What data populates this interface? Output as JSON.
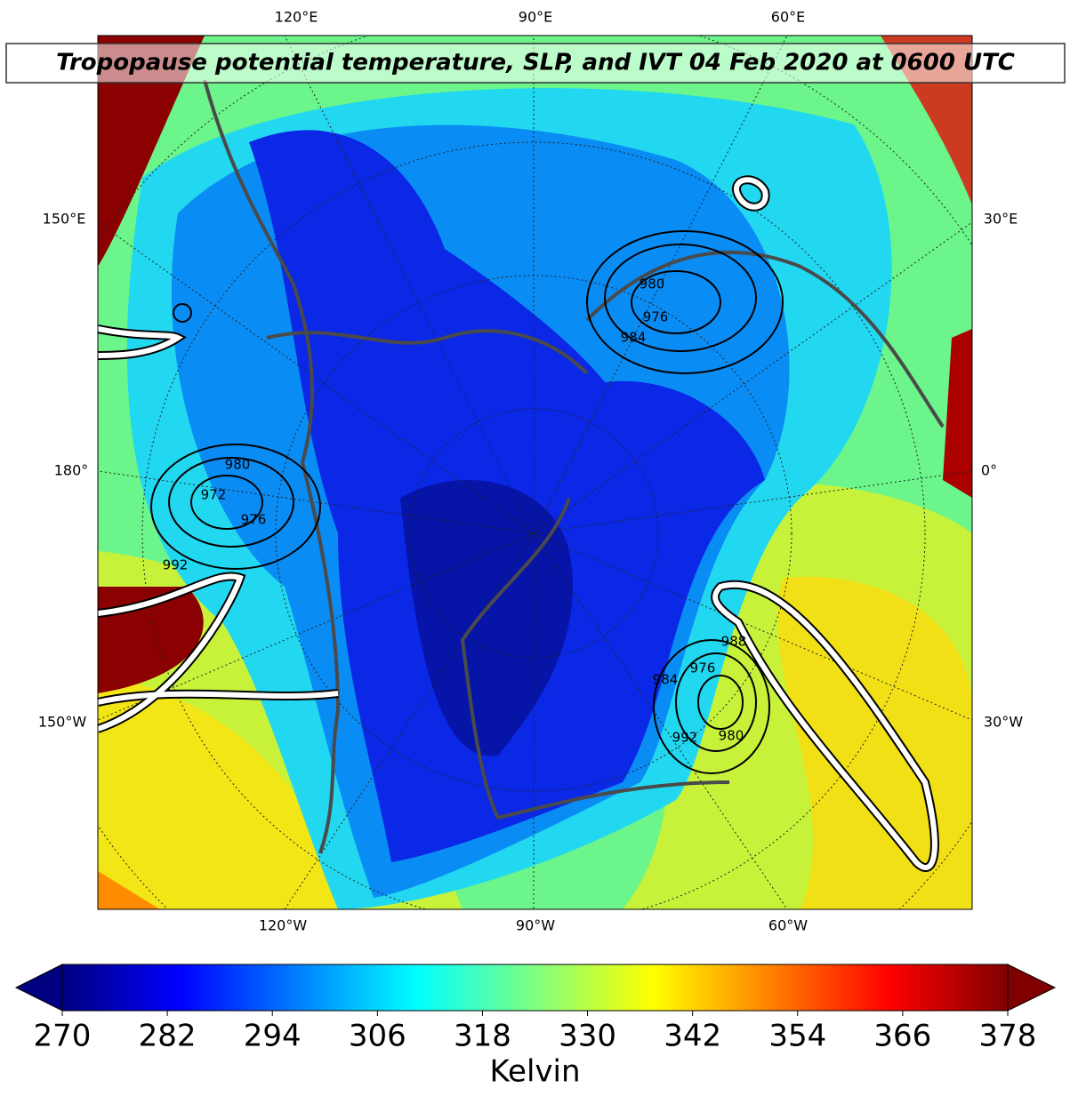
{
  "title": "Tropopause potential temperature, SLP, and IVT 04 Feb 2020 at 0600 UTC",
  "longitude_labels": {
    "top": [
      "120°E",
      "90°E",
      "60°E"
    ],
    "left": [
      "150°E",
      "180°",
      "150°W"
    ],
    "right": [
      "30°E",
      "0°",
      "30°W"
    ],
    "bottom": [
      "120°W",
      "90°W",
      "60°W"
    ]
  },
  "slp_contour_labels": [
    980,
    976,
    984,
    980,
    972,
    976,
    992,
    988,
    976,
    984,
    980,
    992
  ],
  "colorbar": {
    "colormap": "jet",
    "extend": "both",
    "lim": [
      270,
      378
    ],
    "ticks": [
      270,
      282,
      294,
      306,
      318,
      330,
      342,
      354,
      366,
      378
    ],
    "label": "Kelvin"
  }
}
